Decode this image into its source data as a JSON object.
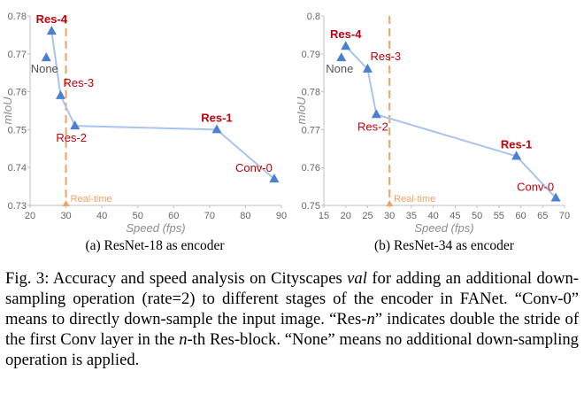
{
  "chart_data": [
    {
      "type": "line",
      "subcaption": "(a) ResNet-18 as encoder",
      "xlabel": "Speed (fps)",
      "ylabel": "mIoU",
      "xlim": [
        20,
        90
      ],
      "ylim": [
        0.73,
        0.78
      ],
      "xticks": [
        20,
        30,
        40,
        50,
        60,
        70,
        80,
        90
      ],
      "yticks": [
        0.73,
        0.74,
        0.75,
        0.76,
        0.77,
        0.78
      ],
      "yticklabels": [
        "0.73",
        "0.74",
        "0.75",
        "0.76",
        "0.77",
        "0.78"
      ],
      "realtime_x": 30,
      "realtime_label": "Real-time",
      "points": [
        {
          "label": "None",
          "x": 24.5,
          "y": 0.769,
          "bold": false,
          "red": false,
          "offset": "left-below"
        },
        {
          "label": "Res-4",
          "x": 26,
          "y": 0.776,
          "bold": true,
          "red": true,
          "offset": "above"
        },
        {
          "label": "Res-3",
          "x": 28.5,
          "y": 0.759,
          "bold": false,
          "red": true,
          "offset": "right-above"
        },
        {
          "label": "Res-2",
          "x": 32.5,
          "y": 0.751,
          "bold": false,
          "red": true,
          "offset": "left-below"
        },
        {
          "label": "Res-1",
          "x": 72,
          "y": 0.75,
          "bold": true,
          "red": true,
          "offset": "above"
        },
        {
          "label": "Conv-0",
          "x": 88,
          "y": 0.737,
          "bold": false,
          "red": true,
          "offset": "left-above"
        }
      ],
      "line_order": [
        "Res-4",
        "Res-3",
        "Res-2",
        "Res-1",
        "Conv-0"
      ]
    },
    {
      "type": "line",
      "subcaption": "(b) ResNet-34 as encoder",
      "xlabel": "Speed (fps)",
      "ylabel": "mIoU",
      "xlim": [
        15,
        70
      ],
      "ylim": [
        0.75,
        0.8
      ],
      "xticks": [
        15,
        20,
        25,
        30,
        35,
        40,
        45,
        50,
        55,
        60,
        65,
        70
      ],
      "yticks": [
        0.75,
        0.76,
        0.77,
        0.78,
        0.79,
        0.8
      ],
      "yticklabels": [
        "0.75",
        "0.76",
        "0.77",
        "0.78",
        "0.79",
        "0.8"
      ],
      "realtime_x": 30,
      "realtime_label": "Real-time",
      "points": [
        {
          "label": "None",
          "x": 19,
          "y": 0.789,
          "bold": false,
          "red": false,
          "offset": "left-below"
        },
        {
          "label": "Res-4",
          "x": 20,
          "y": 0.792,
          "bold": true,
          "red": true,
          "offset": "above"
        },
        {
          "label": "Res-3",
          "x": 25,
          "y": 0.786,
          "bold": false,
          "red": true,
          "offset": "right-above"
        },
        {
          "label": "Res-2",
          "x": 27,
          "y": 0.774,
          "bold": false,
          "red": true,
          "offset": "left-below"
        },
        {
          "label": "Res-1",
          "x": 59,
          "y": 0.763,
          "bold": true,
          "red": true,
          "offset": "above"
        },
        {
          "label": "Conv-0",
          "x": 68,
          "y": 0.752,
          "bold": false,
          "red": true,
          "offset": "left-above"
        }
      ],
      "line_order": [
        "Res-4",
        "Res-3",
        "Res-2",
        "Res-1",
        "Conv-0"
      ]
    }
  ],
  "colors": {
    "marker": "#4a7fd4",
    "line": "#a9c4ec",
    "label_red": "#c0000a",
    "realtime": "#f4a261",
    "axis": "#bfbfbf",
    "text_dark": "#555555"
  },
  "caption": {
    "prefix": "Fig. 3: Accuracy and speed analysis on Cityscapes ",
    "val": "val",
    "mid1": " for adding an additional down-sampling operation (rate=2) to different stages of the encoder in FANet. “Conv-0” means to directly down-sample the input image. “Res-",
    "n1": "n",
    "mid2": "” indicates double the stride of the first Conv layer in the ",
    "n2": "n",
    "suffix": "-th Res-block. “None” means no additional down-sampling operation is applied."
  }
}
